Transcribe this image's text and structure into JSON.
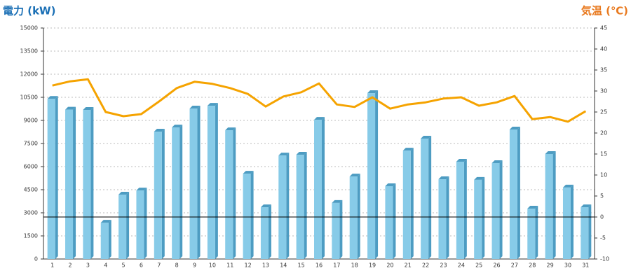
{
  "chart_data": {
    "type": "bar",
    "y_label": "電力 (kW)",
    "y2_label": "気温 (℃)",
    "categories": [
      "1",
      "2",
      "3",
      "4",
      "5",
      "6",
      "7",
      "8",
      "9",
      "10",
      "11",
      "12",
      "13",
      "14",
      "15",
      "16",
      "17",
      "18",
      "19",
      "20",
      "21",
      "22",
      "23",
      "24",
      "25",
      "26",
      "27",
      "28",
      "29",
      "30",
      "31"
    ],
    "series": [
      {
        "name": "電力",
        "type": "bar",
        "color": "#87cbe8",
        "side_color": "#4d9cc2",
        "values": [
          10400,
          9700,
          9680,
          2360,
          4180,
          4450,
          8270,
          8540,
          9770,
          9950,
          8360,
          5540,
          3360,
          6720,
          6770,
          9040,
          3640,
          5360,
          10770,
          4730,
          7040,
          7820,
          5180,
          6320,
          5140,
          6230,
          8410,
          3270,
          6820,
          4640,
          3360
        ]
      },
      {
        "name": "気温",
        "type": "line",
        "axis": "y2",
        "color": "#f5a300",
        "values": [
          31.3,
          32.3,
          32.8,
          25,
          24,
          24.5,
          27.5,
          30.7,
          32.2,
          31.7,
          30.7,
          29.3,
          26.3,
          28.7,
          29.7,
          31.8,
          26.8,
          26.2,
          28.5,
          25.8,
          26.8,
          27.3,
          28.2,
          28.5,
          26.5,
          27.3,
          28.8,
          23.3,
          23.8,
          22.7,
          25.2
        ]
      }
    ],
    "ylim": [
      0,
      15000
    ],
    "yticks": [
      0,
      1500,
      3000,
      4500,
      6000,
      7500,
      9000,
      10500,
      12000,
      13500,
      15000
    ],
    "y2lim": [
      -10,
      45
    ],
    "y2ticks": [
      -10,
      -5,
      0,
      5,
      10,
      15,
      20,
      25,
      30,
      35,
      40,
      45
    ],
    "grid": true
  }
}
